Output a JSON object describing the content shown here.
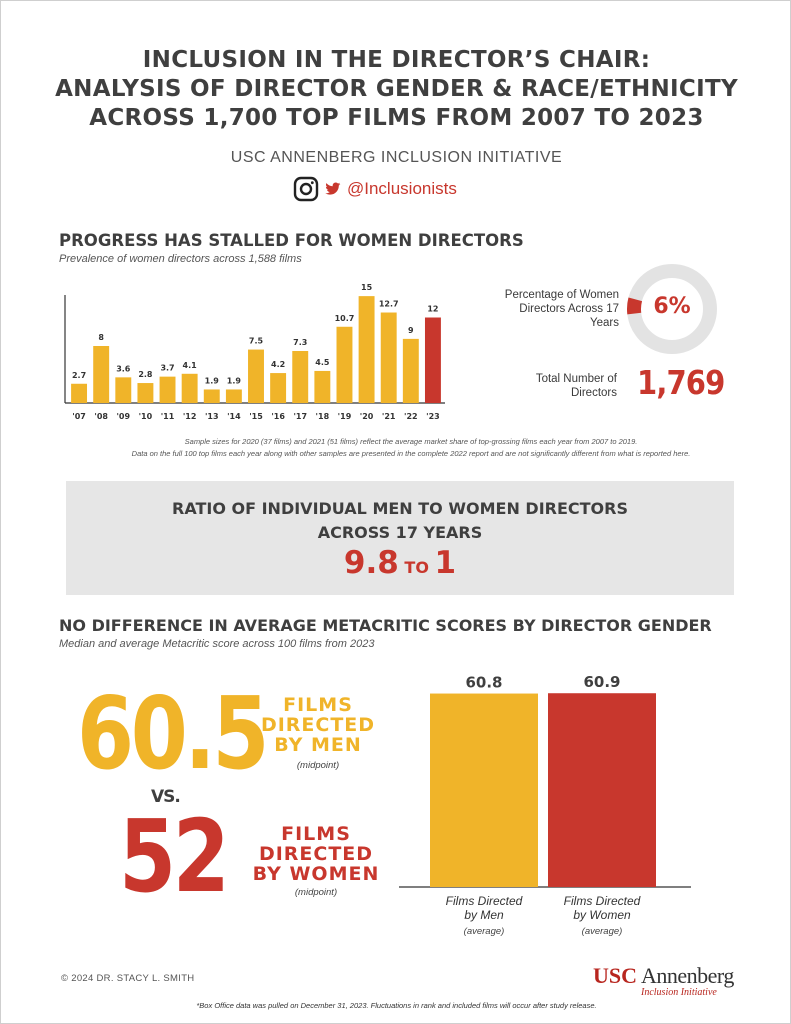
{
  "title": {
    "line1": "INCLUSION IN THE DIRECTOR’S CHAIR:",
    "line2": "ANALYSIS OF DIRECTOR GENDER & RACE/ETHNICITY",
    "line3": "ACROSS 1,700 TOP FILMS FROM 2007 TO 2023"
  },
  "organization": "USC ANNENBERG INCLUSION INITIATIVE",
  "social": {
    "handle": "@Inclusionists",
    "icons": [
      "instagram-icon",
      "twitter-icon"
    ]
  },
  "section1": {
    "heading": "PROGRESS HAS STALLED FOR WOMEN DIRECTORS",
    "subheading": "Prevalence of women directors across 1,588 films"
  },
  "stats": {
    "percentage_label": "Percentage of Women Directors Across 17 Years",
    "percentage_value": "6%",
    "percentage_fraction": 0.06,
    "total_label": "Total Number of Directors",
    "total_value": "1,769"
  },
  "notes": {
    "line1": "Sample sizes for 2020 (37 films) and 2021 (51 films) reflect the average market share of  top-grossing films each year from 2007 to 2019.",
    "line2": "Data on the full 100 top films each year along with other samples are presented in the complete 2022 report and are not significantly different from what is reported here."
  },
  "ratio": {
    "line1": "RATIO OF INDIVIDUAL MEN TO WOMEN DIRECTORS",
    "line2": "ACROSS 17 YEARS",
    "value_men": "9.8",
    "word": "TO",
    "value_women": "1"
  },
  "section2": {
    "heading": "NO DIFFERENCE IN AVERAGE METACRITIC SCORES BY DIRECTOR GENDER",
    "subheading": "Median and average Metacritic score across 100 films from 2023"
  },
  "median": {
    "men_value": "60.5",
    "men_label_lines": [
      "FILMS",
      "DIRECTED",
      "BY MEN"
    ],
    "men_note": "(midpoint)",
    "vs": "VS.",
    "women_value": "52",
    "women_label_lines": [
      "FILMS",
      "DIRECTED",
      "BY WOMEN"
    ],
    "women_note": "(midpoint)"
  },
  "footer": {
    "copyright": "© 2024 DR. STACY L. SMITH",
    "note": "*Box Office data was pulled on December 31, 2023. Fluctuations in rank and included films will occur after study release.",
    "logo_usc": "USC",
    "logo_annenberg": "Annenberg",
    "logo_sub": "Inclusion Initiative"
  },
  "colors": {
    "gold": "#f0b429",
    "red": "#c8372d",
    "grey_box": "#e6e6e6",
    "donut_track": "#e3e3e3",
    "text": "#3f3f3f"
  },
  "chart_data": [
    {
      "type": "bar",
      "title": "PROGRESS HAS STALLED FOR WOMEN DIRECTORS",
      "categories": [
        "'07",
        "'08",
        "'09",
        "'10",
        "'11",
        "'12",
        "'13",
        "'14",
        "'15",
        "'16",
        "'17",
        "'18",
        "'19",
        "'20",
        "'21",
        "'22",
        "'23"
      ],
      "values": [
        2.7,
        8,
        3.6,
        2.8,
        3.7,
        4.1,
        1.9,
        1.9,
        7.5,
        4.2,
        7.3,
        4.5,
        10.7,
        15,
        12.7,
        9,
        12
      ],
      "value_labels": [
        "2.7",
        "8",
        "3.6",
        "2.8",
        "3.7",
        "4.1",
        "1.9",
        "1.9",
        "7.5",
        "4.2",
        "7.3",
        "4.5",
        "10.7",
        "15",
        "12.7",
        "9",
        "12"
      ],
      "highlight_index": 16,
      "bar_colors": {
        "default": "#f0b429",
        "highlight": "#c8372d"
      },
      "ylim": [
        0,
        16
      ],
      "grid": false
    },
    {
      "type": "pie",
      "values": [
        6,
        94
      ],
      "labels": [
        "6%",
        ""
      ],
      "colors": [
        "#c8372d",
        "#e3e3e3"
      ]
    },
    {
      "type": "bar",
      "categories": [
        "Films Directed by Men",
        "Films Directed by Women"
      ],
      "category_lines": [
        [
          "Films Directed",
          "by Men"
        ],
        [
          "Films Directed",
          "by Women"
        ]
      ],
      "sub_labels": [
        "(average)",
        "(average)"
      ],
      "values": [
        60.8,
        60.9
      ],
      "value_labels": [
        "60.8",
        "60.9"
      ],
      "colors": [
        "#f0b429",
        "#c8372d"
      ],
      "ylim": [
        0,
        66
      ],
      "grid": false
    }
  ]
}
